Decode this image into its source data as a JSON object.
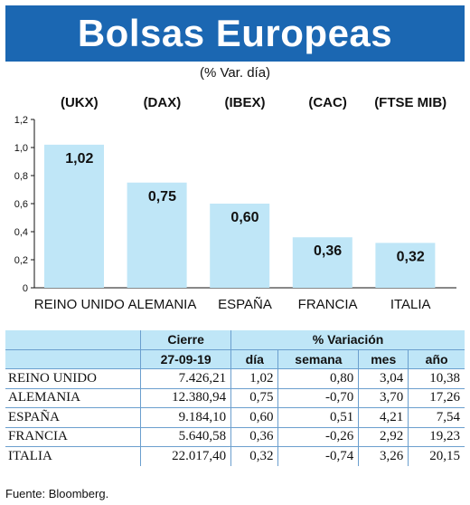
{
  "title": "Bolsas Europeas",
  "subtitle": "(% Var. día)",
  "chart_data": {
    "type": "bar",
    "categories": [
      "REINO UNIDO",
      "ALEMANIA",
      "ESPAÑA",
      "FRANCIA",
      "ITALIA"
    ],
    "indices": [
      "(UKX)",
      "(DAX)",
      "(IBEX)",
      "(CAC)",
      "(FTSE MIB)"
    ],
    "values": [
      1.02,
      0.75,
      0.6,
      0.36,
      0.32
    ],
    "value_labels": [
      "1,02",
      "0,75",
      "0,60",
      "0,36",
      "0,32"
    ],
    "ylim": [
      0,
      1.2
    ],
    "yticks": [
      0,
      0.2,
      0.4,
      0.6,
      0.8,
      1.0,
      1.2
    ],
    "ytick_labels": [
      "0",
      "0,2",
      "0,4",
      "0,6",
      "0,8",
      "1,0",
      "1,2"
    ],
    "bar_color": "#bfe6f7",
    "grid": false
  },
  "table": {
    "header_cierre": "Cierre",
    "header_variacion": "% Variación",
    "header_date": "27-09-19",
    "columns": [
      "día",
      "semana",
      "mes",
      "año"
    ],
    "rows": [
      {
        "name": "REINO UNIDO",
        "cierre": "7.426,21",
        "dia": "1,02",
        "semana": "0,80",
        "mes": "3,04",
        "ano": "10,38"
      },
      {
        "name": "ALEMANIA",
        "cierre": "12.380,94",
        "dia": "0,75",
        "semana": "-0,70",
        "mes": "3,70",
        "ano": "17,26"
      },
      {
        "name": "ESPAÑA",
        "cierre": "9.184,10",
        "dia": "0,60",
        "semana": "0,51",
        "mes": "4,21",
        "ano": "7,54"
      },
      {
        "name": "FRANCIA",
        "cierre": "5.640,58",
        "dia": "0,36",
        "semana": "-0,26",
        "mes": "2,92",
        "ano": "19,23"
      },
      {
        "name": "ITALIA",
        "cierre": "22.017,40",
        "dia": "0,32",
        "semana": "-0,74",
        "mes": "3,26",
        "ano": "20,15"
      }
    ]
  },
  "source": "Fuente: Bloomberg."
}
